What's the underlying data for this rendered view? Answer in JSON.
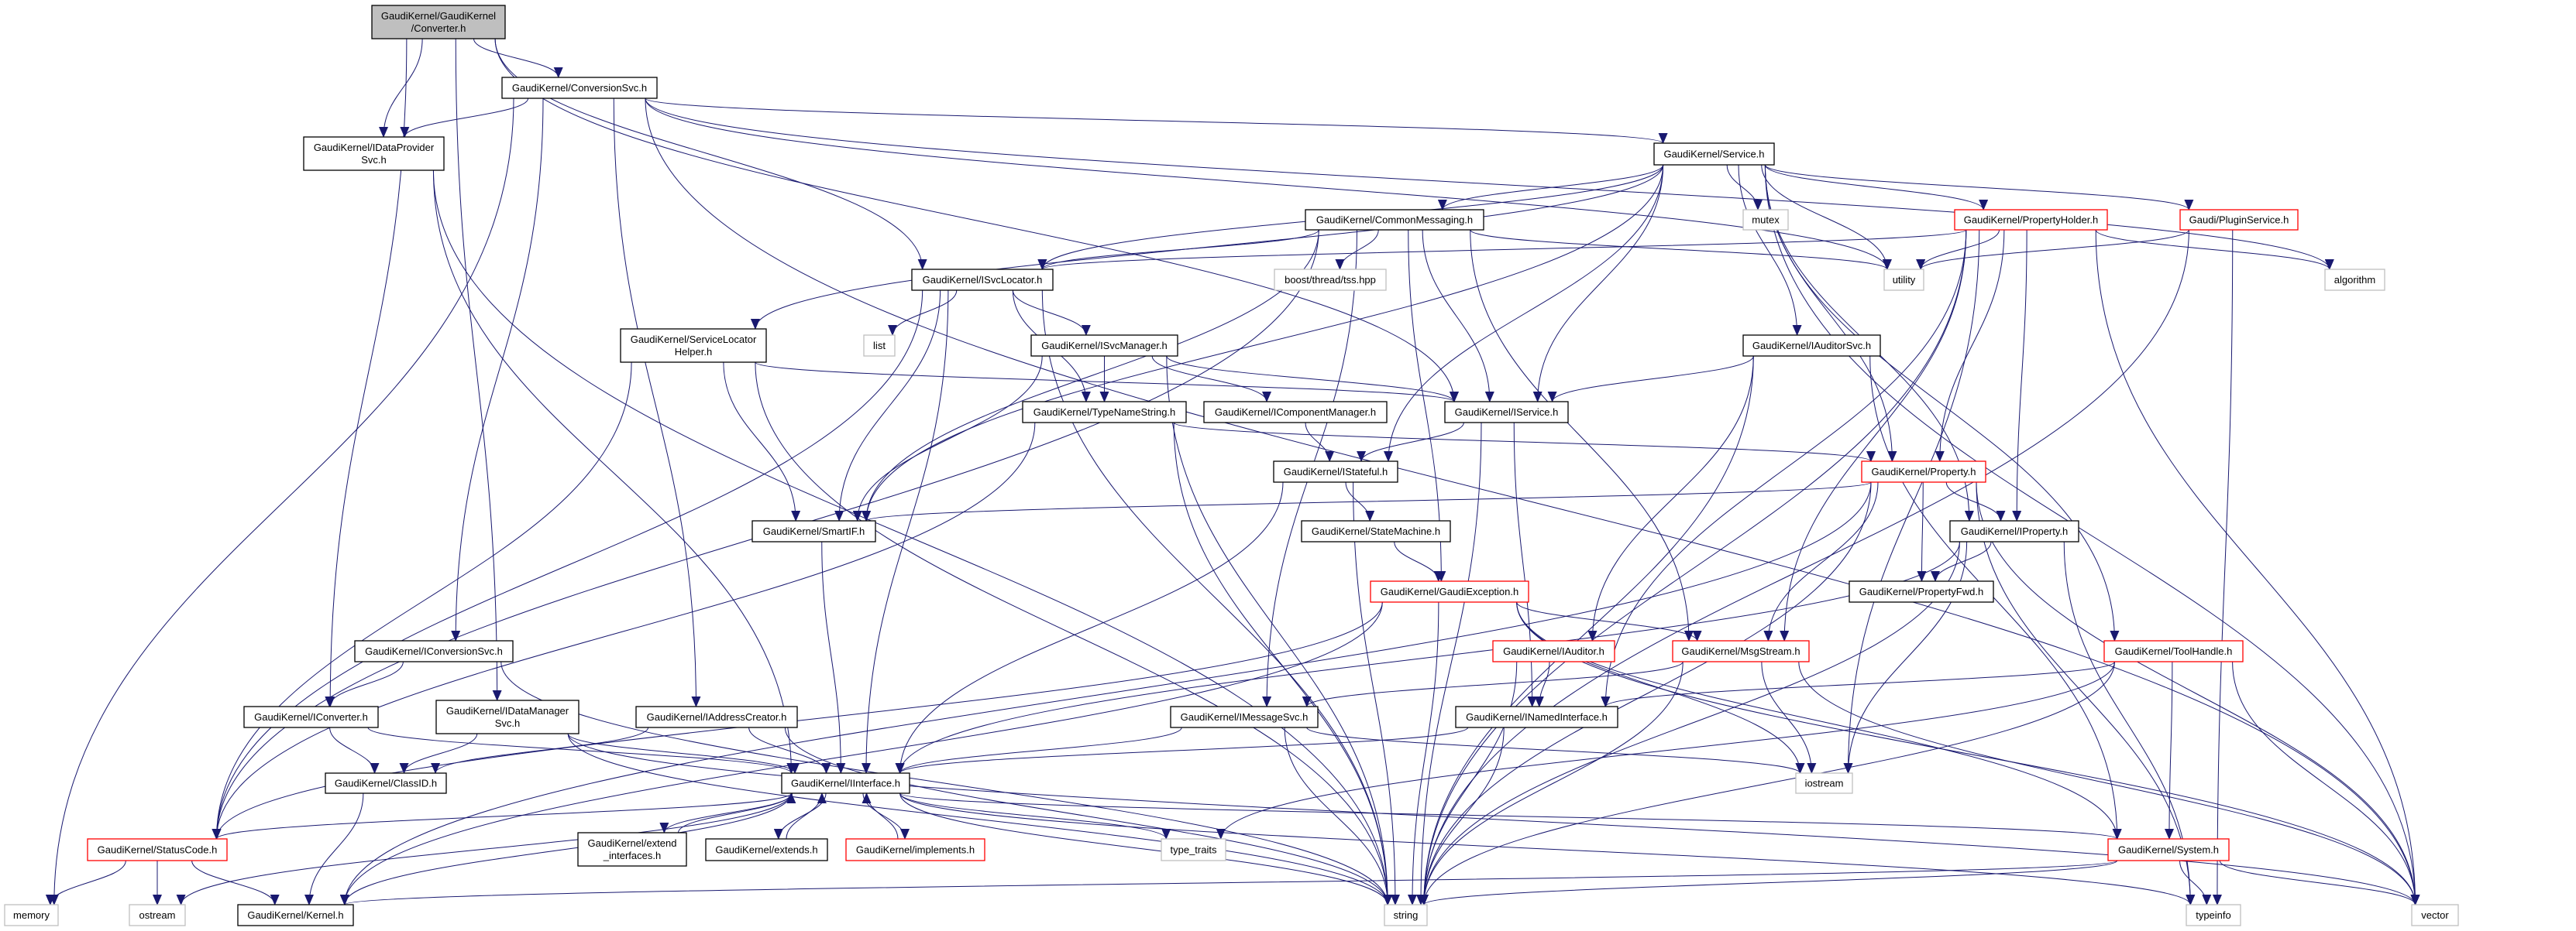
{
  "colors": {
    "edge": "#191970",
    "root_fill": "#bfbfbf",
    "documented_border": "#000000",
    "undocumented_border": "#ff0000",
    "external_border": "#bfbfbf",
    "background": "#ffffff"
  },
  "nodes": [
    {
      "id": "converter",
      "lines": [
        "GaudiKernel/GaudiKernel",
        "/Converter.h"
      ],
      "kind": "root"
    },
    {
      "id": "conversionsvc",
      "lines": [
        "GaudiKernel/ConversionSvc.h"
      ],
      "kind": "documented"
    },
    {
      "id": "idataprovidersvc",
      "lines": [
        "GaudiKernel/IDataProvider",
        "Svc.h"
      ],
      "kind": "documented"
    },
    {
      "id": "servicelocatorhelper",
      "lines": [
        "GaudiKernel/ServiceLocator",
        "Helper.h"
      ],
      "kind": "documented"
    },
    {
      "id": "service",
      "lines": [
        "GaudiKernel/Service.h"
      ],
      "kind": "documented"
    },
    {
      "id": "commonmessaging",
      "lines": [
        "GaudiKernel/CommonMessaging.h"
      ],
      "kind": "documented"
    },
    {
      "id": "mutex",
      "lines": [
        "mutex"
      ],
      "kind": "external"
    },
    {
      "id": "propertyholder",
      "lines": [
        "GaudiKernel/PropertyHolder.h"
      ],
      "kind": "undocumented"
    },
    {
      "id": "pluginservice",
      "lines": [
        "Gaudi/PluginService.h"
      ],
      "kind": "undocumented"
    },
    {
      "id": "isvclocator",
      "lines": [
        "GaudiKernel/ISvcLocator.h"
      ],
      "kind": "documented"
    },
    {
      "id": "tss",
      "lines": [
        "boost/thread/tss.hpp"
      ],
      "kind": "external"
    },
    {
      "id": "utility",
      "lines": [
        "utility"
      ],
      "kind": "external"
    },
    {
      "id": "algorithm",
      "lines": [
        "algorithm"
      ],
      "kind": "external"
    },
    {
      "id": "list",
      "lines": [
        "list"
      ],
      "kind": "external"
    },
    {
      "id": "isvcmanager",
      "lines": [
        "GaudiKernel/ISvcManager.h"
      ],
      "kind": "documented"
    },
    {
      "id": "iauditorsvc",
      "lines": [
        "GaudiKernel/IAuditorSvc.h"
      ],
      "kind": "documented"
    },
    {
      "id": "typenamestring",
      "lines": [
        "GaudiKernel/TypeNameString.h"
      ],
      "kind": "documented"
    },
    {
      "id": "icomponentmanager",
      "lines": [
        "GaudiKernel/IComponentManager.h"
      ],
      "kind": "documented"
    },
    {
      "id": "iservice",
      "lines": [
        "GaudiKernel/IService.h"
      ],
      "kind": "documented"
    },
    {
      "id": "istateful",
      "lines": [
        "GaudiKernel/IStateful.h"
      ],
      "kind": "documented"
    },
    {
      "id": "property",
      "lines": [
        "GaudiKernel/Property.h"
      ],
      "kind": "undocumented"
    },
    {
      "id": "smartif",
      "lines": [
        "GaudiKernel/SmartIF.h"
      ],
      "kind": "documented"
    },
    {
      "id": "statemachine",
      "lines": [
        "GaudiKernel/StateMachine.h"
      ],
      "kind": "documented"
    },
    {
      "id": "iproperty",
      "lines": [
        "GaudiKernel/IProperty.h"
      ],
      "kind": "documented"
    },
    {
      "id": "gaudiexception",
      "lines": [
        "GaudiKernel/GaudiException.h"
      ],
      "kind": "undocumented"
    },
    {
      "id": "propertyfwd",
      "lines": [
        "GaudiKernel/PropertyFwd.h"
      ],
      "kind": "documented"
    },
    {
      "id": "iconversionsvc",
      "lines": [
        "GaudiKernel/IConversionSvc.h"
      ],
      "kind": "documented"
    },
    {
      "id": "iauditor",
      "lines": [
        "GaudiKernel/IAuditor.h"
      ],
      "kind": "undocumented"
    },
    {
      "id": "msgstream",
      "lines": [
        "GaudiKernel/MsgStream.h"
      ],
      "kind": "undocumented"
    },
    {
      "id": "toolhandle",
      "lines": [
        "GaudiKernel/ToolHandle.h"
      ],
      "kind": "undocumented"
    },
    {
      "id": "iconverter",
      "lines": [
        "GaudiKernel/IConverter.h"
      ],
      "kind": "documented"
    },
    {
      "id": "idatamanagersvc",
      "lines": [
        "GaudiKernel/IDataManager",
        "Svc.h"
      ],
      "kind": "documented"
    },
    {
      "id": "iaddresscreator",
      "lines": [
        "GaudiKernel/IAddressCreator.h"
      ],
      "kind": "documented"
    },
    {
      "id": "imessagesvc",
      "lines": [
        "GaudiKernel/IMessageSvc.h"
      ],
      "kind": "documented"
    },
    {
      "id": "inamedinterface",
      "lines": [
        "GaudiKernel/INamedInterface.h"
      ],
      "kind": "documented"
    },
    {
      "id": "classid",
      "lines": [
        "GaudiKernel/ClassID.h"
      ],
      "kind": "documented"
    },
    {
      "id": "iinterface",
      "lines": [
        "GaudiKernel/IInterface.h"
      ],
      "kind": "documented"
    },
    {
      "id": "iostream",
      "lines": [
        "iostream"
      ],
      "kind": "external"
    },
    {
      "id": "statuscode",
      "lines": [
        "GaudiKernel/StatusCode.h"
      ],
      "kind": "undocumented"
    },
    {
      "id": "extendinterfaces",
      "lines": [
        "GaudiKernel/extend",
        "_interfaces.h"
      ],
      "kind": "documented"
    },
    {
      "id": "extends",
      "lines": [
        "GaudiKernel/extends.h"
      ],
      "kind": "documented"
    },
    {
      "id": "implements",
      "lines": [
        "GaudiKernel/implements.h"
      ],
      "kind": "undocumented"
    },
    {
      "id": "typetraits",
      "lines": [
        "type_traits"
      ],
      "kind": "external"
    },
    {
      "id": "system",
      "lines": [
        "GaudiKernel/System.h"
      ],
      "kind": "undocumented"
    },
    {
      "id": "memory",
      "lines": [
        "memory"
      ],
      "kind": "external"
    },
    {
      "id": "ostream",
      "lines": [
        "ostream"
      ],
      "kind": "external"
    },
    {
      "id": "kernel",
      "lines": [
        "GaudiKernel/Kernel.h"
      ],
      "kind": "documented"
    },
    {
      "id": "string",
      "lines": [
        "string"
      ],
      "kind": "external"
    },
    {
      "id": "typeinfo",
      "lines": [
        "typeinfo"
      ],
      "kind": "external"
    },
    {
      "id": "vector",
      "lines": [
        "vector"
      ],
      "kind": "external"
    }
  ],
  "edges": [
    [
      "converter",
      "conversionsvc"
    ],
    [
      "converter",
      "idataprovidersvc"
    ],
    [
      "converter",
      "isvclocator"
    ],
    [
      "converter",
      "iservice"
    ],
    [
      "converter",
      "iconverter"
    ],
    [
      "converter",
      "idatamanagersvc"
    ],
    [
      "conversionsvc",
      "idataprovidersvc"
    ],
    [
      "conversionsvc",
      "service"
    ],
    [
      "conversionsvc",
      "iconversionsvc"
    ],
    [
      "conversionsvc",
      "iaddresscreator"
    ],
    [
      "conversionsvc",
      "utility"
    ],
    [
      "conversionsvc",
      "algorithm"
    ],
    [
      "conversionsvc",
      "vector"
    ],
    [
      "conversionsvc",
      "memory"
    ],
    [
      "idataprovidersvc",
      "iinterface"
    ],
    [
      "idataprovidersvc",
      "string"
    ],
    [
      "service",
      "commonmessaging"
    ],
    [
      "service",
      "isvclocator"
    ],
    [
      "service",
      "iservice"
    ],
    [
      "service",
      "mutex"
    ],
    [
      "service",
      "propertyholder"
    ],
    [
      "service",
      "pluginservice"
    ],
    [
      "service",
      "utility"
    ],
    [
      "service",
      "vector"
    ],
    [
      "service",
      "smartif"
    ],
    [
      "service",
      "servicelocatorhelper"
    ],
    [
      "service",
      "iauditorsvc"
    ],
    [
      "service",
      "property"
    ],
    [
      "service",
      "iproperty"
    ],
    [
      "service",
      "istateful"
    ],
    [
      "service",
      "toolhandle"
    ],
    [
      "commonmessaging",
      "isvclocator"
    ],
    [
      "commonmessaging",
      "iservice"
    ],
    [
      "commonmessaging",
      "smartif"
    ],
    [
      "commonmessaging",
      "tss"
    ],
    [
      "commonmessaging",
      "utility"
    ],
    [
      "commonmessaging",
      "imessagesvc"
    ],
    [
      "commonmessaging",
      "msgstream"
    ],
    [
      "commonmessaging",
      "gaudiexception"
    ],
    [
      "commonmessaging",
      "statuscode"
    ],
    [
      "propertyholder",
      "isvclocator"
    ],
    [
      "propertyholder",
      "utility"
    ],
    [
      "propertyholder",
      "algorithm"
    ],
    [
      "propertyholder",
      "vector"
    ],
    [
      "propertyholder",
      "property"
    ],
    [
      "propertyholder",
      "iproperty"
    ],
    [
      "propertyholder",
      "msgstream"
    ],
    [
      "propertyholder",
      "string"
    ],
    [
      "propertyholder",
      "inamedinterface"
    ],
    [
      "propertyholder",
      "iostream"
    ],
    [
      "pluginservice",
      "utility"
    ],
    [
      "pluginservice",
      "string"
    ],
    [
      "pluginservice",
      "typeinfo"
    ],
    [
      "isvclocator",
      "list"
    ],
    [
      "isvclocator",
      "isvcmanager"
    ],
    [
      "isvclocator",
      "typenamestring"
    ],
    [
      "isvclocator",
      "iinterface"
    ],
    [
      "isvclocator",
      "smartif"
    ],
    [
      "isvclocator",
      "string"
    ],
    [
      "isvclocator",
      "statuscode"
    ],
    [
      "isvcmanager",
      "typenamestring"
    ],
    [
      "isvcmanager",
      "icomponentmanager"
    ],
    [
      "isvcmanager",
      "iservice"
    ],
    [
      "isvcmanager",
      "smartif"
    ],
    [
      "isvcmanager",
      "string"
    ],
    [
      "servicelocatorhelper",
      "iservice"
    ],
    [
      "servicelocatorhelper",
      "smartif"
    ],
    [
      "servicelocatorhelper",
      "statuscode"
    ],
    [
      "servicelocatorhelper",
      "string"
    ],
    [
      "typenamestring",
      "property"
    ],
    [
      "typenamestring",
      "string"
    ],
    [
      "typenamestring",
      "statuscode"
    ],
    [
      "icomponentmanager",
      "istateful"
    ],
    [
      "iservice",
      "istateful"
    ],
    [
      "iservice",
      "inamedinterface"
    ],
    [
      "iservice",
      "string"
    ],
    [
      "istateful",
      "statemachine"
    ],
    [
      "istateful",
      "iinterface"
    ],
    [
      "istateful",
      "string"
    ],
    [
      "statemachine",
      "gaudiexception"
    ],
    [
      "iauditorsvc",
      "iservice"
    ],
    [
      "iauditorsvc",
      "iauditor"
    ],
    [
      "iauditorsvc",
      "string"
    ],
    [
      "iauditorsvc",
      "system"
    ],
    [
      "property",
      "smartif"
    ],
    [
      "property",
      "iproperty"
    ],
    [
      "property",
      "propertyfwd"
    ],
    [
      "property",
      "msgstream"
    ],
    [
      "property",
      "string"
    ],
    [
      "property",
      "typeinfo"
    ],
    [
      "property",
      "vector"
    ],
    [
      "property",
      "kernel"
    ],
    [
      "iproperty",
      "propertyfwd"
    ],
    [
      "iproperty",
      "iostream"
    ],
    [
      "iproperty",
      "string"
    ],
    [
      "iproperty",
      "typeinfo"
    ],
    [
      "iproperty",
      "iinterface"
    ],
    [
      "smartif",
      "iinterface"
    ],
    [
      "gaudiexception",
      "msgstream"
    ],
    [
      "gaudiexception",
      "string"
    ],
    [
      "gaudiexception",
      "iostream"
    ],
    [
      "gaudiexception",
      "kernel"
    ],
    [
      "gaudiexception",
      "statuscode"
    ],
    [
      "gaudiexception",
      "system"
    ],
    [
      "gaudiexception",
      "vector"
    ],
    [
      "iauditor",
      "inamedinterface"
    ],
    [
      "iauditor",
      "string"
    ],
    [
      "msgstream",
      "imessagesvc"
    ],
    [
      "msgstream",
      "iostream"
    ],
    [
      "msgstream",
      "string"
    ],
    [
      "msgstream",
      "vector"
    ],
    [
      "toolhandle",
      "inamedinterface"
    ],
    [
      "toolhandle",
      "typetraits"
    ],
    [
      "toolhandle",
      "system"
    ],
    [
      "toolhandle",
      "string"
    ],
    [
      "toolhandle",
      "vector"
    ],
    [
      "imessagesvc",
      "iinterface"
    ],
    [
      "imessagesvc",
      "iostream"
    ],
    [
      "imessagesvc",
      "string"
    ],
    [
      "inamedinterface",
      "iinterface"
    ],
    [
      "inamedinterface",
      "string"
    ],
    [
      "iconversionsvc",
      "iconverter"
    ],
    [
      "iconversionsvc",
      "string"
    ],
    [
      "iconverter",
      "classid"
    ],
    [
      "iconverter",
      "iinterface"
    ],
    [
      "idatamanagersvc",
      "classid"
    ],
    [
      "idatamanagersvc",
      "iinterface"
    ],
    [
      "idatamanagersvc",
      "string"
    ],
    [
      "idatamanagersvc",
      "vector"
    ],
    [
      "iaddresscreator",
      "classid"
    ],
    [
      "iaddresscreator",
      "iinterface"
    ],
    [
      "iaddresscreator",
      "string"
    ],
    [
      "classid",
      "kernel"
    ],
    [
      "iinterface",
      "statuscode"
    ],
    [
      "iinterface",
      "extendinterfaces"
    ],
    [
      "iinterface",
      "extends"
    ],
    [
      "iinterface",
      "implements"
    ],
    [
      "iinterface",
      "typetraits"
    ],
    [
      "iinterface",
      "system"
    ],
    [
      "iinterface",
      "kernel"
    ],
    [
      "iinterface",
      "ostream"
    ],
    [
      "iinterface",
      "string"
    ],
    [
      "iinterface",
      "typeinfo"
    ],
    [
      "extendinterfaces",
      "iinterface"
    ],
    [
      "extends",
      "iinterface"
    ],
    [
      "implements",
      "iinterface"
    ],
    [
      "statuscode",
      "memory"
    ],
    [
      "statuscode",
      "ostream"
    ],
    [
      "statuscode",
      "kernel"
    ],
    [
      "system",
      "kernel"
    ],
    [
      "system",
      "string"
    ],
    [
      "system",
      "typeinfo"
    ],
    [
      "system",
      "vector"
    ]
  ]
}
